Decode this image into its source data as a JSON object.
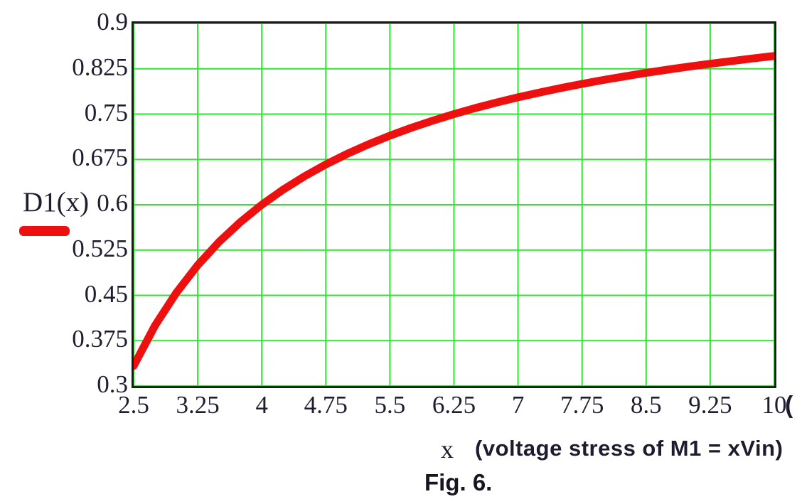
{
  "colors": {
    "curve_red": "#ee0f0f",
    "grid_green": "#33e233",
    "axis_border": "#1a1a1a",
    "tick_text": "#1e1e30"
  },
  "legend": {
    "label": "D1(x)"
  },
  "caption": "Fig. 6.",
  "chart_data": {
    "type": "line",
    "title": "",
    "legend_position": "left",
    "grid": true,
    "x_axis": {
      "label": "x",
      "annotation": "(voltage stress of M1 = xVin)",
      "range": [
        2.5,
        10
      ],
      "ticks": [
        "2.5",
        "3.25",
        "4",
        "4.75",
        "5.5",
        "6.25",
        "7",
        "7.75",
        "8.5",
        "9.25",
        "10"
      ],
      "tick_values": [
        2.5,
        3.25,
        4,
        4.75,
        5.5,
        6.25,
        7,
        7.75,
        8.5,
        9.25,
        10
      ],
      "edge_fragment": "("
    },
    "y_axis": {
      "label": "D1(x)",
      "range": [
        0.3,
        0.9
      ],
      "ticks": [
        "0.9",
        "0.825",
        "0.75",
        "0.675",
        "0.6",
        "0.525",
        "0.45",
        "0.375",
        "0.3"
      ],
      "tick_values": [
        0.9,
        0.825,
        0.75,
        0.675,
        0.6,
        0.525,
        0.45,
        0.375,
        0.3
      ]
    },
    "series": [
      {
        "name": "D1(x)",
        "color": "#ee0f0f",
        "points": [
          [
            2.5,
            0.3333
          ],
          [
            2.75,
            0.4
          ],
          [
            3.0,
            0.4545
          ],
          [
            3.25,
            0.5
          ],
          [
            3.5,
            0.5385
          ],
          [
            3.75,
            0.5714
          ],
          [
            4.0,
            0.6
          ],
          [
            4.25,
            0.625
          ],
          [
            4.5,
            0.6471
          ],
          [
            4.75,
            0.6667
          ],
          [
            5.0,
            0.6842
          ],
          [
            5.25,
            0.7
          ],
          [
            5.5,
            0.7143
          ],
          [
            5.75,
            0.7273
          ],
          [
            6.0,
            0.7391
          ],
          [
            6.25,
            0.75
          ],
          [
            6.5,
            0.76
          ],
          [
            6.75,
            0.7692
          ],
          [
            7.0,
            0.7778
          ],
          [
            7.25,
            0.7857
          ],
          [
            7.5,
            0.7931
          ],
          [
            7.75,
            0.8
          ],
          [
            8.0,
            0.8065
          ],
          [
            8.25,
            0.8125
          ],
          [
            8.5,
            0.8182
          ],
          [
            8.75,
            0.8235
          ],
          [
            9.0,
            0.8286
          ],
          [
            9.25,
            0.8333
          ],
          [
            9.5,
            0.8378
          ],
          [
            9.75,
            0.8421
          ],
          [
            10.0,
            0.8462
          ]
        ]
      }
    ]
  }
}
